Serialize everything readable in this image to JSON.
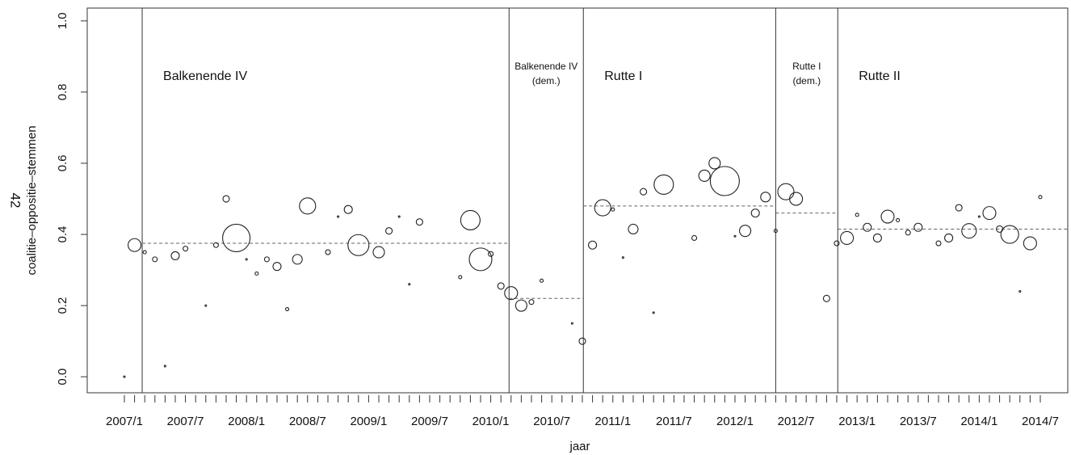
{
  "chart_data": {
    "type": "bubble",
    "ylabel_top": "42",
    "ylabel": "coalitie–oppositie–stemmen",
    "xlabel": "jaar",
    "categories": [
      "2007/1",
      null,
      null,
      null,
      null,
      null,
      "2007/7",
      null,
      null,
      null,
      null,
      null,
      "2008/1",
      null,
      null,
      null,
      null,
      null,
      "2008/7",
      null,
      null,
      null,
      null,
      null,
      "2009/1",
      null,
      null,
      null,
      null,
      null,
      "2009/7",
      null,
      null,
      null,
      null,
      null,
      "2010/1",
      null,
      null,
      null,
      null,
      null,
      "2010/7",
      null,
      null,
      null,
      null,
      null,
      "2011/1",
      null,
      null,
      null,
      null,
      null,
      "2011/7",
      null,
      null,
      null,
      null,
      null,
      "2012/1",
      null,
      null,
      null,
      null,
      null,
      "2012/7",
      null,
      null,
      null,
      null,
      null,
      "2013/1",
      null,
      null,
      null,
      null,
      null,
      "2013/7",
      null,
      null,
      null,
      null,
      null,
      "2014/1",
      null,
      null,
      null,
      null,
      null,
      "2014/7"
    ],
    "values": [
      0.0,
      0.37,
      0.35,
      0.33,
      0.03,
      0.34,
      0.36,
      null,
      0.2,
      0.37,
      0.5,
      0.39,
      0.33,
      0.29,
      0.33,
      0.31,
      0.19,
      0.33,
      0.48,
      null,
      0.35,
      0.45,
      0.47,
      0.37,
      null,
      0.35,
      0.41,
      0.45,
      0.26,
      0.435,
      null,
      null,
      null,
      0.28,
      0.44,
      0.33,
      0.345,
      0.255,
      0.235,
      0.2,
      0.21,
      0.27,
      null,
      null,
      0.15,
      0.1,
      0.37,
      0.475,
      0.47,
      0.335,
      0.415,
      0.52,
      0.18,
      0.54,
      null,
      null,
      0.39,
      0.565,
      0.6,
      0.55,
      0.395,
      0.41,
      0.46,
      0.505,
      0.41,
      0.52,
      0.5,
      null,
      null,
      0.22,
      0.375,
      0.39,
      0.455,
      0.42,
      0.39,
      0.45,
      0.44,
      0.405,
      0.42,
      null,
      0.375,
      0.39,
      0.475,
      0.41,
      0.45,
      0.46,
      0.415,
      0.4,
      0.24,
      0.375,
      0.505
    ],
    "sizes": [
      1,
      8,
      2,
      3,
      1,
      5,
      3,
      null,
      1,
      3,
      4,
      17,
      1,
      2,
      3,
      5,
      2,
      6,
      10,
      null,
      3,
      1,
      5,
      13,
      null,
      7,
      4,
      1,
      1,
      4,
      null,
      null,
      null,
      2,
      12,
      14,
      3,
      4,
      8,
      7,
      3,
      2,
      null,
      null,
      1,
      4,
      5,
      10,
      2,
      1,
      6,
      4,
      1,
      12,
      null,
      null,
      3,
      7,
      7,
      18,
      1,
      7,
      5,
      6,
      2,
      10,
      8,
      null,
      null,
      4,
      3,
      8,
      2,
      5,
      5,
      8,
      2,
      3,
      5,
      null,
      3,
      5,
      4,
      9,
      1,
      8,
      4,
      11,
      1,
      8,
      2
    ],
    "periods": [
      {
        "label": [
          "Balkenende IV"
        ],
        "start": 1.75,
        "mean": 0.375
      },
      {
        "label": [
          "Balkenende IV",
          "(dem.)"
        ],
        "start": 37.8,
        "mean": 0.22
      },
      {
        "label": [
          "Rutte I"
        ],
        "start": 45.1,
        "mean": 0.48
      },
      {
        "label": [
          "Rutte I",
          "(dem.)"
        ],
        "start": 64,
        "mean": 0.46
      },
      {
        "label": [
          "Rutte II"
        ],
        "start": 70.1,
        "mean": 0.415
      }
    ],
    "xlim": [
      -3.65,
      92.7
    ],
    "ylim": [
      -0.045,
      1.036
    ],
    "yticks": [
      {
        "value": 0,
        "label": "0.0"
      },
      0.2,
      0.4,
      0.6,
      0.8,
      {
        "value": 1,
        "label": "1.0"
      }
    ]
  }
}
